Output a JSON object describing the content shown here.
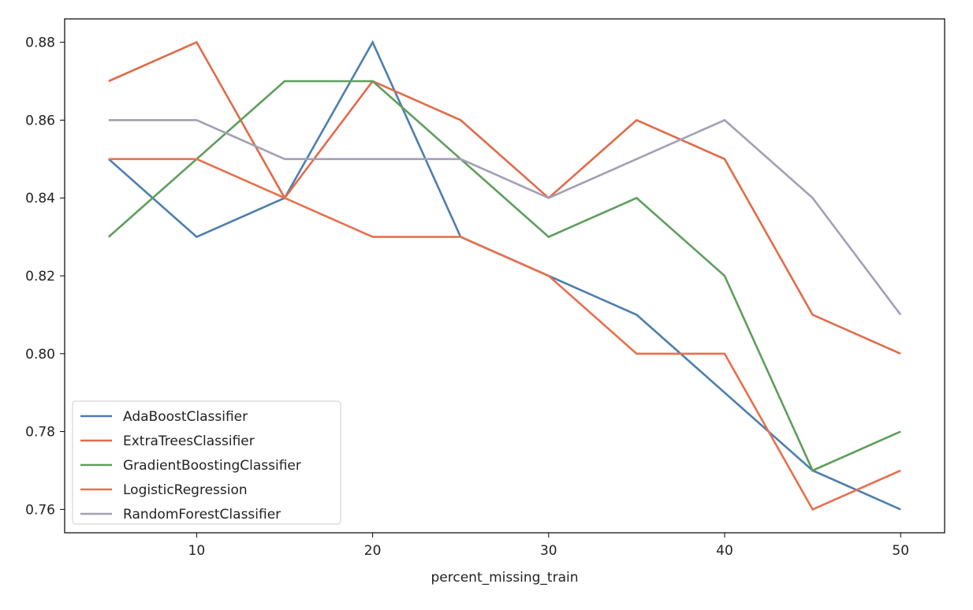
{
  "chart_data": {
    "type": "line",
    "xlabel": "percent_missing_train",
    "ylabel": "",
    "title": "",
    "x": [
      5,
      10,
      15,
      20,
      25,
      30,
      35,
      40,
      45,
      50
    ],
    "xticks": [
      10,
      20,
      30,
      40,
      50
    ],
    "yticks": [
      0.76,
      0.78,
      0.8,
      0.82,
      0.84,
      0.86,
      0.88
    ],
    "ytick_labels": [
      "0.76",
      "0.78",
      "0.80",
      "0.82",
      "0.84",
      "0.86",
      "0.88"
    ],
    "xlim": [
      2.5,
      52.5
    ],
    "ylim": [
      0.754,
      0.886
    ],
    "grid": false,
    "legend_position": "lower-left",
    "series": [
      {
        "name": "AdaBoostClassifier",
        "color": "#4c7fae",
        "values": [
          0.85,
          0.83,
          0.84,
          0.88,
          0.83,
          0.82,
          0.81,
          0.79,
          0.77,
          0.76
        ]
      },
      {
        "name": "ExtraTreesClassifier",
        "color": "#e06c4a",
        "values": [
          0.87,
          0.88,
          0.84,
          0.87,
          0.86,
          0.84,
          0.86,
          0.85,
          0.81,
          0.8
        ]
      },
      {
        "name": "GradientBoostingClassifier",
        "color": "#5e9e5c",
        "values": [
          0.83,
          0.85,
          0.87,
          0.87,
          0.85,
          0.83,
          0.84,
          0.82,
          0.77,
          0.78
        ]
      },
      {
        "name": "LogisticRegression",
        "color": "#e8704e",
        "values": [
          0.85,
          0.85,
          0.84,
          0.83,
          0.83,
          0.82,
          0.8,
          0.8,
          0.76,
          0.77
        ]
      },
      {
        "name": "RandomForestClassifier",
        "color": "#a39fb5",
        "values": [
          0.86,
          0.86,
          0.85,
          0.85,
          0.85,
          0.84,
          0.85,
          0.86,
          0.84,
          0.81
        ]
      }
    ]
  }
}
